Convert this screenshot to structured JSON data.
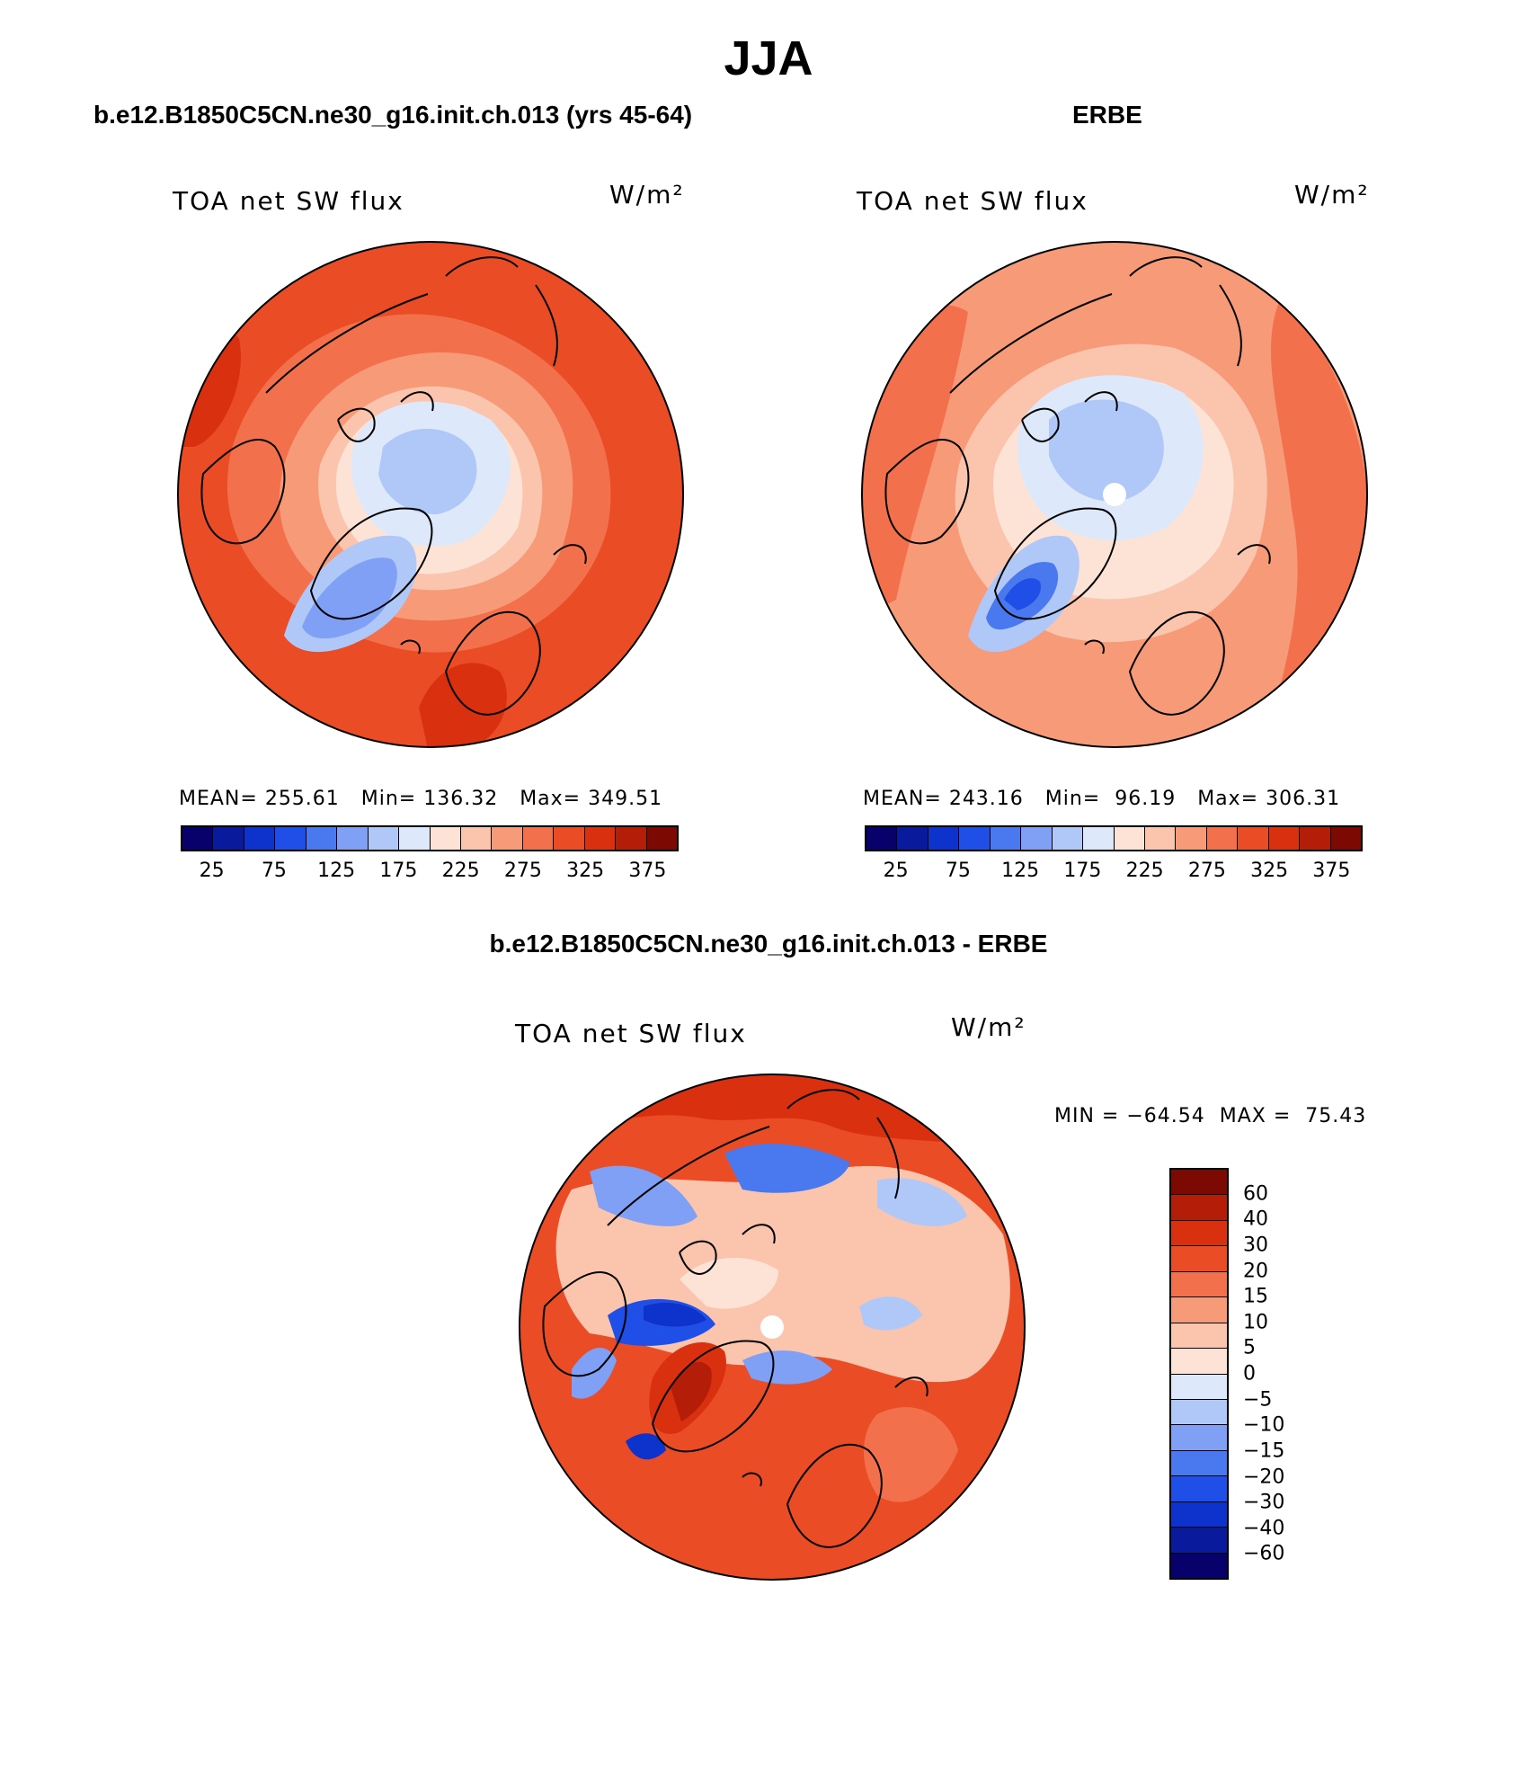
{
  "figure": {
    "title": "JJA"
  },
  "panels": {
    "model": {
      "title": "b.e12.B1850C5CN.ne30_g16.init.ch.013 (yrs 45-64)",
      "variable_label": "TOA net SW flux",
      "units": "W/m²",
      "stats": "MEAN= 255.61   Min= 136.32   Max= 349.51",
      "colorbar_ticks": [
        "25",
        "75",
        "125",
        "175",
        "225",
        "275",
        "325",
        "375"
      ]
    },
    "obs": {
      "title": "ERBE",
      "variable_label": "TOA net SW flux",
      "units": "W/m²",
      "stats": "MEAN= 243.16   Min=  96.19   Max= 306.31",
      "colorbar_ticks": [
        "25",
        "75",
        "125",
        "175",
        "225",
        "275",
        "325",
        "375"
      ]
    },
    "diff": {
      "title": "b.e12.B1850C5CN.ne30_g16.init.ch.013 - ERBE",
      "variable_label": "TOA net SW flux",
      "units": "W/m²",
      "stats": "MIN = −64.54  MAX =  75.43",
      "colorbar_ticks": [
        "60",
        "40",
        "30",
        "20",
        "15",
        "10",
        "5",
        "0",
        "−5",
        "−10",
        "−15",
        "−20",
        "−30",
        "−40",
        "−60"
      ]
    }
  },
  "colors": {
    "abs_scale": [
      "#08006b",
      "#0a1a9c",
      "#0d33cc",
      "#1f4fe6",
      "#4a78ee",
      "#7fa0f4",
      "#b0c8f8",
      "#dde9fb",
      "#fde3d6",
      "#fbc4ad",
      "#f79a78",
      "#f2714c",
      "#ea4c25",
      "#d9300f",
      "#b41d08",
      "#7c0a02"
    ],
    "diff_scale": [
      "#7c0a02",
      "#b41d08",
      "#d9300f",
      "#ea4c25",
      "#f2714c",
      "#f79a78",
      "#fbc4ad",
      "#fde3d6",
      "#dde9fb",
      "#b0c8f8",
      "#7fa0f4",
      "#4a78ee",
      "#1f4fe6",
      "#0d33cc",
      "#0a1a9c",
      "#08006b"
    ]
  },
  "chart_data": {
    "type": "map",
    "projection": "north polar stereographic",
    "season": "JJA",
    "variable": "TOA net SW flux",
    "units": "W/m2",
    "maps": [
      {
        "name": "b.e12.B1850C5CN.ne30_g16.init.ch.013 (yrs 45-64)",
        "mean": 255.61,
        "min": 136.32,
        "max": 349.51,
        "contour_levels": [
          25,
          50,
          75,
          100,
          125,
          150,
          175,
          200,
          225,
          250,
          275,
          300,
          325,
          350,
          375
        ]
      },
      {
        "name": "ERBE",
        "mean": 243.16,
        "min": 96.19,
        "max": 306.31,
        "contour_levels": [
          25,
          50,
          75,
          100,
          125,
          150,
          175,
          200,
          225,
          250,
          275,
          300,
          325,
          350,
          375
        ]
      },
      {
        "name": "b.e12.B1850C5CN.ne30_g16.init.ch.013 - ERBE",
        "min": -64.54,
        "max": 75.43,
        "contour_levels": [
          -60,
          -40,
          -30,
          -20,
          -15,
          -10,
          -5,
          0,
          5,
          10,
          15,
          20,
          30,
          40,
          60
        ]
      }
    ]
  }
}
